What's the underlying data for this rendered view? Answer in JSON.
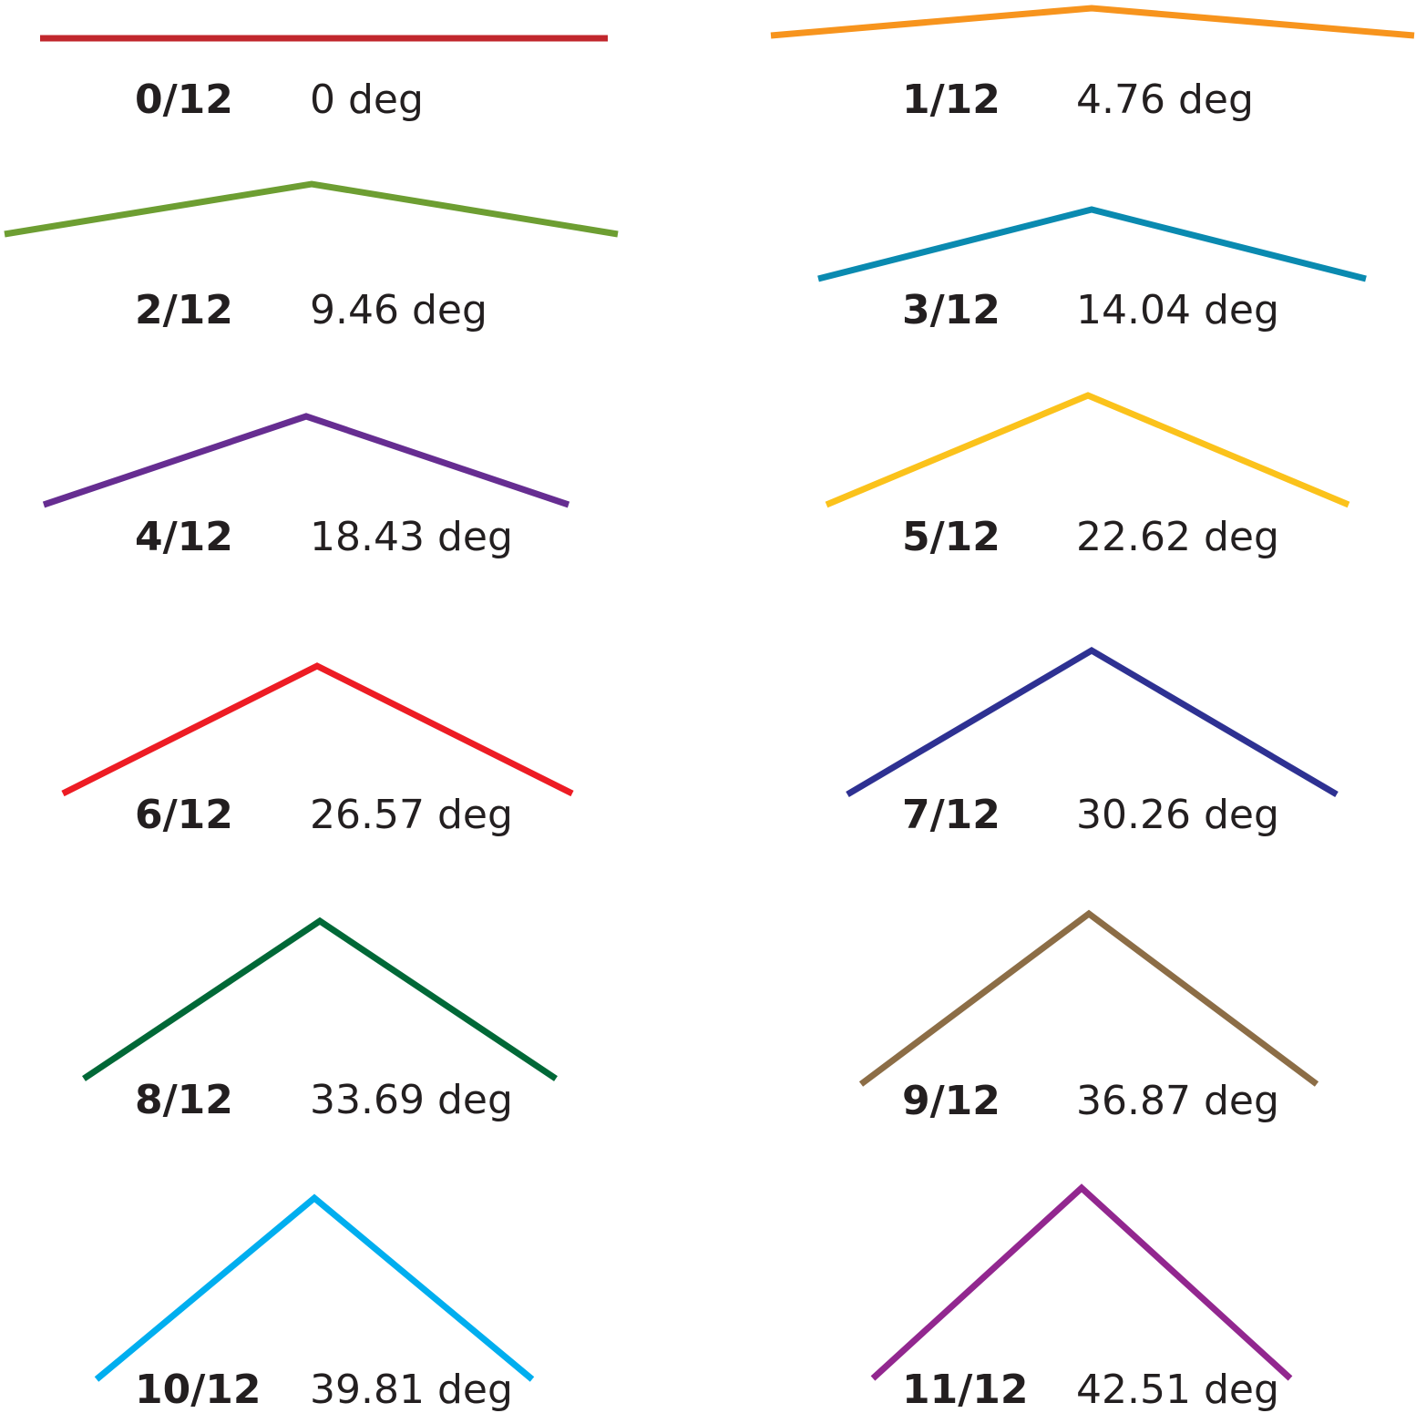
{
  "pitches": [
    {
      "ratio": "0/12",
      "angle": "0 deg",
      "rise": 0,
      "color": "#c1272d"
    },
    {
      "ratio": "1/12",
      "angle": "4.76 deg",
      "rise": 1,
      "color": "#f7941d"
    },
    {
      "ratio": "2/12",
      "angle": "9.46 deg",
      "rise": 2,
      "color": "#6d9e32"
    },
    {
      "ratio": "3/12",
      "angle": "14.04 deg",
      "rise": 3,
      "color": "#0a8ab0"
    },
    {
      "ratio": "4/12",
      "angle": "18.43 deg",
      "rise": 4,
      "color": "#662d91"
    },
    {
      "ratio": "5/12",
      "angle": "22.62 deg",
      "rise": 5,
      "color": "#fbc21b"
    },
    {
      "ratio": "6/12",
      "angle": "26.57 deg",
      "rise": 6,
      "color": "#ed1c24"
    },
    {
      "ratio": "7/12",
      "angle": "30.26 deg",
      "rise": 7,
      "color": "#2e3192"
    },
    {
      "ratio": "8/12",
      "angle": "33.69 deg",
      "rise": 8,
      "color": "#006837"
    },
    {
      "ratio": "9/12",
      "angle": "36.87 deg",
      "rise": 9,
      "color": "#8c6d46"
    },
    {
      "ratio": "10/12",
      "angle": "39.81 deg",
      "rise": 10,
      "color": "#00aeef"
    },
    {
      "ratio": "11/12",
      "angle": "42.51 deg",
      "rise": 11,
      "color": "#92278f"
    }
  ]
}
